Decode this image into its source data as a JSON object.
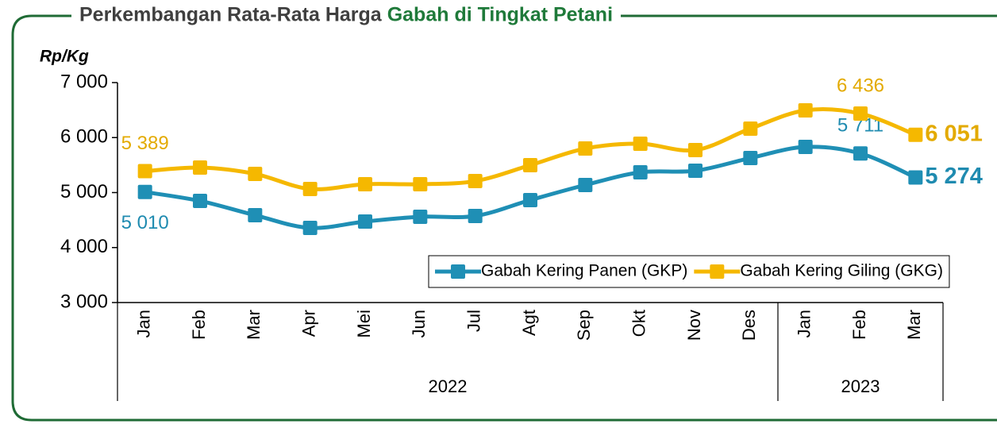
{
  "chart_data": {
    "type": "line",
    "title": {
      "text": "Perkembangan Rata-Rata Harga",
      "highlight": "Gabah di Tingkat Petani"
    },
    "y_label": "Rp/Kg",
    "groups": [
      {
        "name": "2022",
        "categories": [
          "Jan",
          "Feb",
          "Mar",
          "Apr",
          "Mei",
          "Jun",
          "Jul",
          "Agt",
          "Sep",
          "Okt",
          "Nov",
          "Des"
        ]
      },
      {
        "name": "2023",
        "categories": [
          "Jan",
          "Feb",
          "Mar"
        ]
      }
    ],
    "series": [
      {
        "name": "Gabah Kering Panen (GKP)",
        "color": "#1f8fb5",
        "values": [
          5010,
          4848,
          4588,
          4357,
          4473,
          4560,
          4574,
          4863,
          5137,
          5368,
          5397,
          5628,
          5830,
          5711,
          5274
        ],
        "value_labels": [
          "5 010",
          null,
          null,
          null,
          null,
          null,
          null,
          null,
          null,
          null,
          null,
          null,
          null,
          "5 711",
          "5 274"
        ]
      },
      {
        "name": "Gabah Kering Giling (GKG)",
        "color": "#f5b800",
        "values": [
          5389,
          5455,
          5339,
          5065,
          5152,
          5152,
          5209,
          5498,
          5801,
          5888,
          5773,
          6162,
          6495,
          6436,
          6051
        ],
        "value_labels": [
          "5 389",
          null,
          null,
          null,
          null,
          null,
          null,
          null,
          null,
          null,
          null,
          null,
          null,
          "6 436",
          "6 051"
        ]
      }
    ],
    "ylim": [
      3000,
      7000
    ],
    "yticks": [
      {
        "value": 3000,
        "label": "3 000"
      },
      {
        "value": 4000,
        "label": "4 000"
      },
      {
        "value": 5000,
        "label": "5 000"
      },
      {
        "value": 6000,
        "label": "6 000"
      },
      {
        "value": 7000,
        "label": "7 000"
      }
    ],
    "grid": false,
    "legend": "lower right",
    "frame_color": "#1f6b35",
    "title_color": "#3f3f3f",
    "highlight_color": "#1f7a3a"
  }
}
